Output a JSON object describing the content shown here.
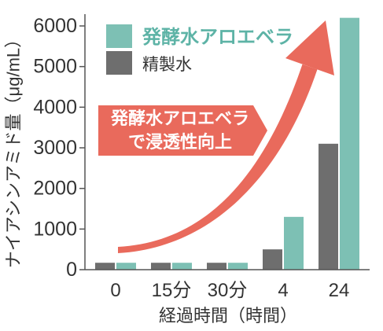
{
  "chart_data": {
    "type": "bar",
    "xlabel": "経過時間（時間）",
    "ylabel": "ナイアシンアミド量（μg/mL）",
    "categories": [
      "0",
      "15分",
      "30分",
      "4",
      "24"
    ],
    "series": [
      {
        "name": "精製水",
        "values": [
          170,
          170,
          170,
          500,
          3100
        ],
        "color": "#6e6e6e",
        "label_color": "#333333"
      },
      {
        "name": "発酵水アロエベラ",
        "values": [
          170,
          170,
          170,
          1300,
          6200
        ],
        "color": "#7dc0b4",
        "label_color": "#5db3a6"
      }
    ],
    "ylim": [
      0,
      6000
    ],
    "yticks": [
      0,
      1000,
      2000,
      3000,
      4000,
      5000,
      6000
    ],
    "grid": false,
    "legend": {
      "position": "top-left"
    },
    "annotation": {
      "lines": [
        "発酵水アロエベラ",
        "で浸透性向上"
      ],
      "color": "#e96a5c",
      "text_color": "#ffffff"
    }
  },
  "colors": {
    "text": "#333333",
    "axis": "#555555"
  }
}
